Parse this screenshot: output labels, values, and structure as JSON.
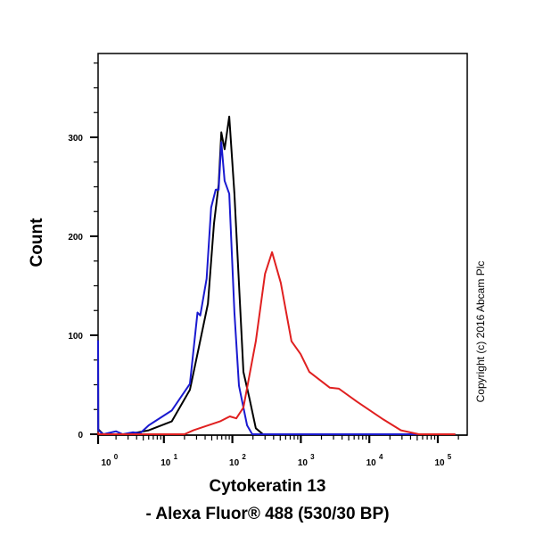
{
  "chart_data": {
    "type": "line",
    "title": "",
    "xlabel": "Cytokeratin 13",
    "xlabel_line2": "- Alexa Fluor® 488 (530/30 BP)",
    "ylabel": "Count",
    "x_scale": "log",
    "xlim": [
      1,
      180000
    ],
    "ylim": [
      0,
      385
    ],
    "x_ticks": [
      {
        "base": "10",
        "exp": "0",
        "value": 1
      },
      {
        "base": "10",
        "exp": "1",
        "value": 10
      },
      {
        "base": "10",
        "exp": "2",
        "value": 100
      },
      {
        "base": "10",
        "exp": "3",
        "value": 1000
      },
      {
        "base": "10",
        "exp": "4",
        "value": 10000
      },
      {
        "base": "10",
        "exp": "5",
        "value": 100000
      }
    ],
    "y_ticks": [
      0,
      100,
      200,
      300
    ],
    "grid": false,
    "legend": "none",
    "series": [
      {
        "color": "#000000",
        "points": [
          [
            1,
            95
          ],
          [
            1.1,
            5
          ],
          [
            1.3,
            0
          ],
          [
            3,
            0
          ],
          [
            6,
            4
          ],
          [
            13,
            13
          ],
          [
            24,
            45
          ],
          [
            32,
            86
          ],
          [
            44,
            132
          ],
          [
            54,
            213
          ],
          [
            63,
            252
          ],
          [
            69,
            305
          ],
          [
            77,
            288
          ],
          [
            90,
            321
          ],
          [
            107,
            243
          ],
          [
            145,
            63
          ],
          [
            178,
            36
          ],
          [
            220,
            6
          ],
          [
            280,
            0
          ],
          [
            180000,
            0
          ]
        ]
      },
      {
        "color": "#1a1ad0",
        "points": [
          [
            1,
            95
          ],
          [
            1.1,
            4
          ],
          [
            1.3,
            0
          ],
          [
            2,
            3
          ],
          [
            2.5,
            0
          ],
          [
            3.5,
            2
          ],
          [
            4.5,
            1
          ],
          [
            6,
            9
          ],
          [
            13,
            24
          ],
          [
            24,
            51
          ],
          [
            31,
            123
          ],
          [
            34,
            120
          ],
          [
            42,
            157
          ],
          [
            49,
            229
          ],
          [
            57,
            247
          ],
          [
            63,
            247
          ],
          [
            69,
            295
          ],
          [
            77,
            256
          ],
          [
            90,
            243
          ],
          [
            107,
            123
          ],
          [
            125,
            49
          ],
          [
            164,
            9
          ],
          [
            195,
            0
          ],
          [
            180000,
            0
          ]
        ]
      },
      {
        "color": "#e02020",
        "points": [
          [
            1,
            2
          ],
          [
            1.1,
            0
          ],
          [
            20,
            0
          ],
          [
            27,
            4
          ],
          [
            66,
            13
          ],
          [
            92,
            18
          ],
          [
            114,
            16
          ],
          [
            145,
            27
          ],
          [
            220,
            94
          ],
          [
            300,
            162
          ],
          [
            380,
            184
          ],
          [
            510,
            153
          ],
          [
            730,
            94
          ],
          [
            990,
            81
          ],
          [
            1330,
            63
          ],
          [
            2650,
            47
          ],
          [
            3600,
            46
          ],
          [
            6600,
            33
          ],
          [
            16000,
            15
          ],
          [
            29000,
            4
          ],
          [
            53000,
            0
          ],
          [
            180000,
            0
          ]
        ]
      }
    ]
  },
  "copyright": "Copyright (c) 2016 Abcam Plc"
}
